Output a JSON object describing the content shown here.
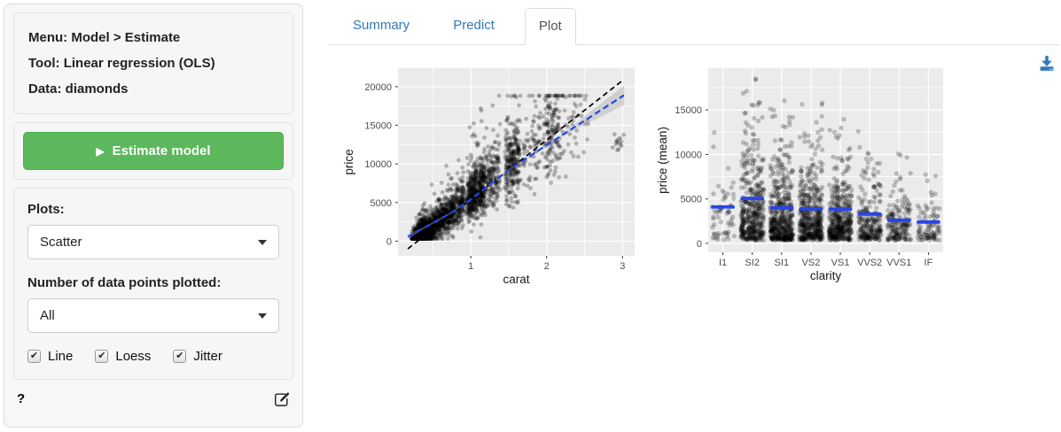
{
  "sidebar": {
    "info": {
      "menu": "Menu: Model > Estimate",
      "tool": "Tool: Linear regression (OLS)",
      "data": "Data: diamonds"
    },
    "estimate_button": {
      "label": "Estimate model",
      "color": "#5cb85c"
    },
    "plots_label": "Plots:",
    "plots_select": {
      "value": "Scatter"
    },
    "npoints_label": "Number of data points plotted:",
    "npoints_select": {
      "value": "All"
    },
    "checkboxes": [
      {
        "label": "Line",
        "checked": true
      },
      {
        "label": "Loess",
        "checked": true
      },
      {
        "label": "Jitter",
        "checked": true
      }
    ],
    "help_label": "?"
  },
  "tabs": [
    {
      "label": "Summary",
      "active": false
    },
    {
      "label": "Predict",
      "active": false
    },
    {
      "label": "Plot",
      "active": true
    }
  ],
  "colors": {
    "link_blue": "#337ab7",
    "download_blue": "#2e7bbd",
    "smooth_blue": "#2545ec",
    "panel_bg": "#ebebeb",
    "tick_label": "#4d4d4d"
  },
  "chart_data": [
    {
      "type": "scatter",
      "title": "",
      "xlabel": "carat",
      "ylabel": "price",
      "xlim": [
        0.04,
        3.16
      ],
      "ylim": [
        -1900,
        22400
      ],
      "xticks": [
        1,
        2,
        3
      ],
      "xminor": [
        0.5,
        1.5,
        2.5
      ],
      "yticks": [
        0,
        5000,
        10000,
        15000,
        20000
      ],
      "yminor": [
        2500,
        7500,
        12500,
        17500
      ],
      "grid": "on",
      "legend": "none",
      "n_points": 2800,
      "point_alpha": 0.26,
      "point_radius": 2.4,
      "x_clusters": [
        [
          0.23,
          0.42,
          30
        ],
        [
          0.42,
          0.62,
          14
        ],
        [
          0.62,
          0.78,
          9
        ],
        [
          0.78,
          0.92,
          6
        ],
        [
          0.95,
          1.18,
          16
        ],
        [
          1.18,
          1.38,
          6
        ],
        [
          1.45,
          1.65,
          9
        ],
        [
          1.68,
          1.92,
          3
        ],
        [
          1.95,
          2.18,
          5
        ],
        [
          2.2,
          2.55,
          1.5
        ],
        [
          2.88,
          3.05,
          0.5
        ]
      ],
      "price_model": {
        "intercept": -2300,
        "slope": 7700,
        "min": 340,
        "max": 18820
      },
      "ols_line": {
        "style": "dashed",
        "color": "#000000",
        "intercept": -2300,
        "slope": 7700,
        "x_start": 0.17,
        "x_end": 3.02
      },
      "loess_line": {
        "style": "dashed",
        "points": [
          [
            0.17,
            570
          ],
          [
            0.35,
            1545
          ],
          [
            0.55,
            2625
          ],
          [
            0.75,
            3705
          ],
          [
            0.95,
            5015
          ],
          [
            1.15,
            6555
          ],
          [
            1.35,
            8095
          ],
          [
            1.55,
            9570
          ],
          [
            1.75,
            10840
          ],
          [
            1.95,
            12110
          ],
          [
            2.15,
            13380
          ],
          [
            2.35,
            14650
          ],
          [
            2.55,
            15920
          ],
          [
            2.75,
            17190
          ],
          [
            2.9,
            18140
          ],
          [
            3.02,
            18900
          ]
        ],
        "ci_halfwidth": [
          346,
          130,
          130,
          130,
          130,
          130,
          130,
          130,
          130,
          130,
          130,
          340,
          620,
          900,
          1110,
          1278
        ]
      }
    },
    {
      "type": "jitter-scatter",
      "title": "",
      "xlabel": "clarity",
      "ylabel": "price (mean)",
      "categories": [
        "I1",
        "SI2",
        "SI1",
        "VS2",
        "VS1",
        "VVS2",
        "VVS1",
        "IF"
      ],
      "means": [
        4100,
        5050,
        4000,
        3900,
        3850,
        3300,
        2600,
        2400
      ],
      "counts": [
        60,
        420,
        470,
        450,
        400,
        230,
        170,
        90
      ],
      "max_price": [
        13500,
        18800,
        18800,
        18800,
        18500,
        18600,
        17000,
        18300
      ],
      "yticks": [
        0,
        5000,
        10000,
        15000
      ],
      "yminor": [
        2500,
        7500,
        12500,
        17500
      ],
      "ylim": [
        -1000,
        19700
      ],
      "grid": "on",
      "legend": "none",
      "point_alpha": 0.22,
      "point_radius": 2.7,
      "price_floor": 350
    }
  ]
}
